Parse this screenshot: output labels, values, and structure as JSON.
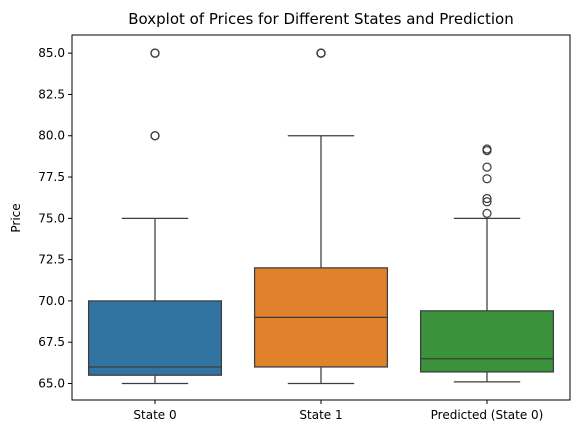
{
  "chart_data": {
    "type": "boxplot",
    "title": "Boxplot of Prices for Different States and Prediction",
    "xlabel": "",
    "ylabel": "Price",
    "ylim": [
      64.0,
      86.1
    ],
    "yticks": [
      65.0,
      67.5,
      70.0,
      72.5,
      75.0,
      77.5,
      80.0,
      82.5,
      85.0
    ],
    "ytick_labels": [
      "65.0",
      "67.5",
      "70.0",
      "72.5",
      "75.0",
      "77.5",
      "80.0",
      "82.5",
      "85.0"
    ],
    "grid": false,
    "categories": [
      "State 0",
      "State 1",
      "Predicted (State 0)"
    ],
    "series": [
      {
        "category": "State 0",
        "color": "#3274a1",
        "whisker_low": 65.0,
        "q1": 65.5,
        "median": 66.0,
        "q3": 70.0,
        "whisker_high": 75.0,
        "outliers": [
          80.0,
          80.0,
          85.0,
          85.0
        ]
      },
      {
        "category": "State 1",
        "color": "#e1812c",
        "whisker_low": 65.0,
        "q1": 66.0,
        "median": 69.0,
        "q3": 72.0,
        "whisker_high": 80.0,
        "outliers": [
          85.0,
          85.0,
          85.0
        ]
      },
      {
        "category": "Predicted (State 0)",
        "color": "#3a923a",
        "whisker_low": 65.1,
        "q1": 65.7,
        "median": 66.5,
        "q3": 69.4,
        "whisker_high": 75.0,
        "outliers": [
          75.3,
          76.0,
          76.2,
          77.4,
          78.1,
          79.1,
          79.2
        ]
      }
    ]
  }
}
